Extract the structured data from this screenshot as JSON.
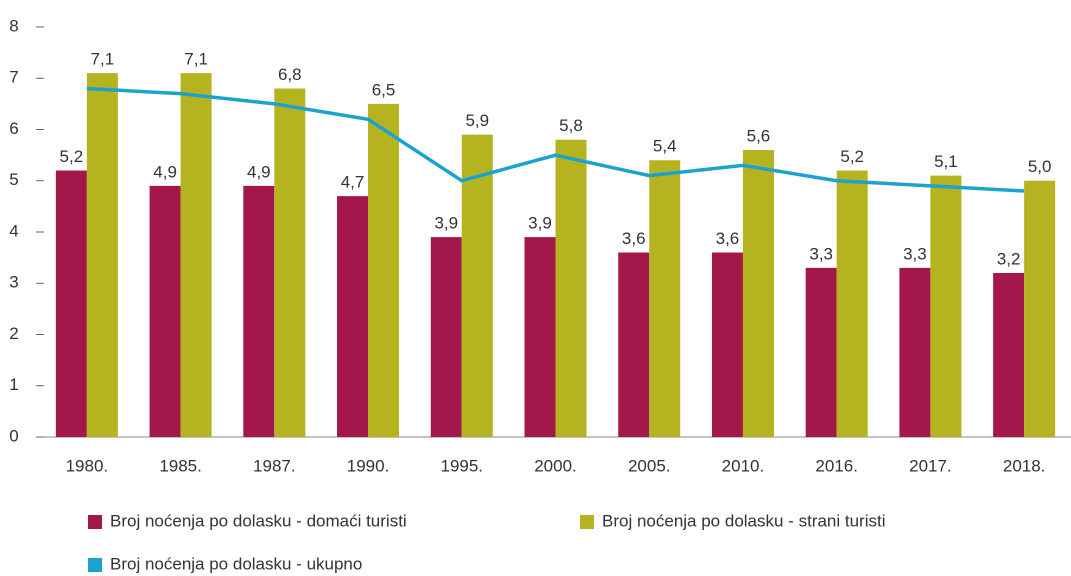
{
  "chart_data": {
    "type": "bar_line",
    "categories": [
      "1980.",
      "1985.",
      "1987.",
      "1990.",
      "1995.",
      "2000.",
      "2005.",
      "2010.",
      "2016.",
      "2017.",
      "2018."
    ],
    "series": [
      {
        "name": "Broj noćenja po dolasku - domaći turisti",
        "color": "#a3174a",
        "type": "bar",
        "values": [
          5.2,
          4.9,
          4.9,
          4.7,
          3.9,
          3.9,
          3.6,
          3.6,
          3.3,
          3.3,
          3.2
        ],
        "value_labels": [
          "5,2",
          "4,9",
          "4,9",
          "4,7",
          "3,9",
          "3,9",
          "3,6",
          "3,6",
          "3,3",
          "3,3",
          "3,2"
        ]
      },
      {
        "name": "Broj noćenja po dolasku - strani turisti",
        "color": "#b5b31f",
        "type": "bar",
        "values": [
          7.1,
          7.1,
          6.8,
          6.5,
          5.9,
          5.8,
          5.4,
          5.6,
          5.2,
          5.1,
          5.0
        ],
        "value_labels": [
          "7,1",
          "7,1",
          "6,8",
          "6,5",
          "5,9",
          "5,8",
          "5,4",
          "5,6",
          "5,2",
          "5,1",
          "5,0"
        ]
      },
      {
        "name": "Broj noćenja po dolasku - ukupno",
        "color": "#1ba3d0",
        "type": "line",
        "values": [
          6.8,
          6.7,
          6.5,
          6.2,
          5.0,
          5.5,
          5.1,
          5.3,
          5.0,
          4.9,
          4.8
        ]
      }
    ],
    "ylim": [
      0,
      8
    ],
    "yticks": [
      0,
      1,
      2,
      3,
      4,
      5,
      6,
      7,
      8
    ],
    "grid": false
  }
}
